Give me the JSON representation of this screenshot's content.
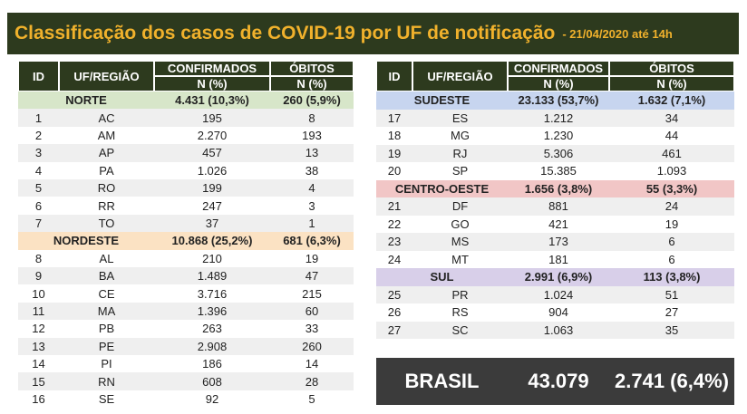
{
  "header": {
    "title": "Classificação dos casos de COVID-19 por UF de notificação",
    "subtitle": "- 21/04/2020 até 14h"
  },
  "left_table": {
    "columns": [
      "ID",
      "UF/REGIÃO",
      "CONFIRMADOS",
      "ÓBITOS"
    ],
    "subheaders": [
      "N (%)",
      "N (%)"
    ],
    "groups": [
      {
        "region": "NORTE",
        "confirmed": "4.431 (10,3%)",
        "deaths": "260 (5,9%)",
        "rows": [
          [
            "1",
            "AC",
            "195",
            "8"
          ],
          [
            "2",
            "AM",
            "2.270",
            "193"
          ],
          [
            "3",
            "AP",
            "457",
            "13"
          ],
          [
            "4",
            "PA",
            "1.026",
            "38"
          ],
          [
            "5",
            "RO",
            "199",
            "4"
          ],
          [
            "6",
            "RR",
            "247",
            "3"
          ],
          [
            "7",
            "TO",
            "37",
            "1"
          ]
        ]
      },
      {
        "region": "NORDESTE",
        "confirmed": "10.868 (25,2%)",
        "deaths": "681 (6,3%)",
        "rows": [
          [
            "8",
            "AL",
            "210",
            "19"
          ],
          [
            "9",
            "BA",
            "1.489",
            "47"
          ],
          [
            "10",
            "CE",
            "3.716",
            "215"
          ],
          [
            "11",
            "MA",
            "1.396",
            "60"
          ],
          [
            "12",
            "PB",
            "263",
            "33"
          ],
          [
            "13",
            "PE",
            "2.908",
            "260"
          ],
          [
            "14",
            "PI",
            "186",
            "14"
          ],
          [
            "15",
            "RN",
            "608",
            "28"
          ],
          [
            "16",
            "SE",
            "92",
            "5"
          ]
        ]
      }
    ]
  },
  "right_table": {
    "columns": [
      "ID",
      "UF/REGIÃO",
      "CONFIRMADOS",
      "ÓBITOS"
    ],
    "subheaders": [
      "N (%)",
      "N (%)"
    ],
    "groups": [
      {
        "region": "SUDESTE",
        "confirmed": "23.133 (53,7%)",
        "deaths": "1.632 (7,1%)",
        "rows": [
          [
            "17",
            "ES",
            "1.212",
            "34"
          ],
          [
            "18",
            "MG",
            "1.230",
            "44"
          ],
          [
            "19",
            "RJ",
            "5.306",
            "461"
          ],
          [
            "20",
            "SP",
            "15.385",
            "1.093"
          ]
        ]
      },
      {
        "region": "CENTRO-OESTE",
        "confirmed": "1.656 (3,8%)",
        "deaths": "55 (3,3%)",
        "rows": [
          [
            "21",
            "DF",
            "881",
            "24"
          ],
          [
            "22",
            "GO",
            "421",
            "19"
          ],
          [
            "23",
            "MS",
            "173",
            "6"
          ],
          [
            "24",
            "MT",
            "181",
            "6"
          ]
        ]
      },
      {
        "region": "SUL",
        "confirmed": "2.991 (6,9%)",
        "deaths": "113 (3,8%)",
        "rows": [
          [
            "25",
            "PR",
            "1.024",
            "51"
          ],
          [
            "26",
            "RS",
            "904",
            "27"
          ],
          [
            "27",
            "SC",
            "1.063",
            "35"
          ]
        ]
      }
    ]
  },
  "total": {
    "label": "BRASIL",
    "confirmed": "43.079",
    "deaths": "2.741 (6,4%)"
  }
}
